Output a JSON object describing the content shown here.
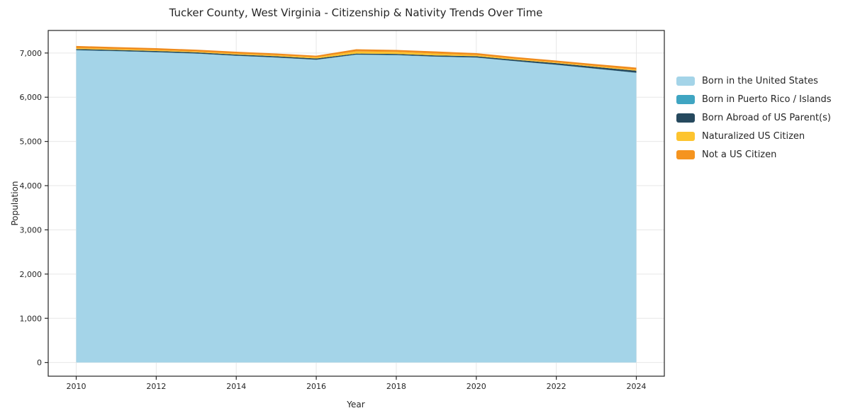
{
  "chart_data": {
    "type": "area",
    "stacked": true,
    "title": "Tucker County, West Virginia - Citizenship & Nativity Trends Over Time",
    "xlabel": "Year",
    "ylabel": "Population",
    "x": [
      2010,
      2011,
      2012,
      2013,
      2014,
      2015,
      2016,
      2017,
      2018,
      2019,
      2020,
      2021,
      2022,
      2023,
      2024
    ],
    "series": [
      {
        "name": "Born in the United States",
        "color": "#a4d4e8",
        "values": [
          7060,
          7040,
          7015,
          6985,
          6935,
          6895,
          6845,
          6960,
          6950,
          6915,
          6895,
          6810,
          6730,
          6640,
          6550
        ]
      },
      {
        "name": "Born in Puerto Rico / Islands",
        "color": "#3fa5c2",
        "values": [
          5,
          5,
          5,
          5,
          5,
          5,
          5,
          5,
          5,
          5,
          5,
          5,
          5,
          5,
          5
        ]
      },
      {
        "name": "Born Abroad of US Parent(s)",
        "color": "#26495e",
        "values": [
          25,
          25,
          25,
          25,
          25,
          28,
          28,
          22,
          25,
          25,
          28,
          30,
          35,
          40,
          45
        ]
      },
      {
        "name": "Naturalized US Citizen",
        "color": "#fdc42f",
        "values": [
          20,
          20,
          20,
          18,
          20,
          22,
          25,
          48,
          45,
          40,
          25,
          20,
          18,
          18,
          20
        ]
      },
      {
        "name": "Not a US Citizen",
        "color": "#f5941f",
        "values": [
          35,
          30,
          30,
          27,
          30,
          25,
          22,
          35,
          30,
          35,
          30,
          28,
          27,
          30,
          35
        ]
      }
    ],
    "top_edge_color": "#ee8a1c",
    "xticks": [
      2010,
      2012,
      2014,
      2016,
      2018,
      2020,
      2022,
      2024
    ],
    "xtick_labels": [
      "2010",
      "2012",
      "2014",
      "2016",
      "2018",
      "2020",
      "2022",
      "2024"
    ],
    "yticks": [
      0,
      1000,
      2000,
      3000,
      4000,
      5000,
      6000,
      7000
    ],
    "ytick_labels": [
      "0",
      "1,000",
      "2,000",
      "3,000",
      "4,000",
      "5,000",
      "6,000",
      "7,000"
    ],
    "xlim": [
      2009.3,
      2024.7
    ],
    "ylim": [
      -310,
      7510
    ],
    "grid": true,
    "grid_color": "#e7e7e7",
    "spine_color": "#262626",
    "tick_label_color": "#262626",
    "legend_position": "right"
  }
}
